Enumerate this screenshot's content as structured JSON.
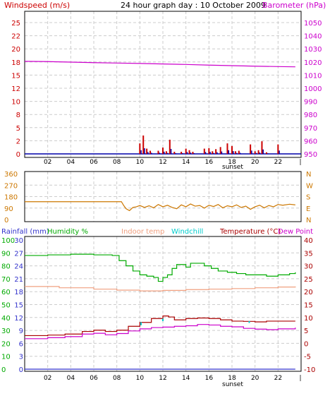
{
  "title": "24 hour graph day : 10 October 2009",
  "colors": {
    "wind": "#cc0000",
    "baro": "#cc00cc",
    "dir": "#cc7700",
    "rain": "#3333cc",
    "humidity": "#00aa00",
    "indoor": "#f0a080",
    "windchill": "#00cccc",
    "temp": "#aa0000",
    "dew": "#cc00cc",
    "grid": "#cccccc",
    "frame": "#000000"
  },
  "chart_data": [
    {
      "type": "bar",
      "left_label": "Windspeed (m/s)",
      "right_label": "Barometer (hPa)",
      "left_ticks": [
        "25",
        "22",
        "20",
        "18",
        "15",
        "12",
        "10",
        "8",
        "5",
        "2",
        "0"
      ],
      "right_ticks": [
        "1050",
        "1040",
        "1030",
        "1020",
        "1010",
        "1000",
        "990",
        "980",
        "970",
        "960",
        "950"
      ],
      "x_ticks": [
        "02",
        "04",
        "06",
        "08",
        "10",
        "12",
        "14",
        "16",
        "18",
        "20",
        "22"
      ],
      "sunset_label": "sunset",
      "ylim_left": [
        0,
        25
      ],
      "ylim_right": [
        948,
        1052
      ],
      "series": [
        {
          "name": "Windspeed",
          "axis": "left",
          "points": [
            [
              10.0,
              2.0
            ],
            [
              10.3,
              3.5
            ],
            [
              10.6,
              1.0
            ],
            [
              10.9,
              0.6
            ],
            [
              11.6,
              0.6
            ],
            [
              12.0,
              1.2
            ],
            [
              12.3,
              0.5
            ],
            [
              12.6,
              2.7
            ],
            [
              13.0,
              0.4
            ],
            [
              13.6,
              0.4
            ],
            [
              14.0,
              1.0
            ],
            [
              14.3,
              0.7
            ],
            [
              14.6,
              0.4
            ],
            [
              15.6,
              1.0
            ],
            [
              16.0,
              1.1
            ],
            [
              16.3,
              0.5
            ],
            [
              16.6,
              0.9
            ],
            [
              17.0,
              1.3
            ],
            [
              17.6,
              2.0
            ],
            [
              18.0,
              1.5
            ],
            [
              18.3,
              0.5
            ],
            [
              18.6,
              0.6
            ],
            [
              19.6,
              1.8
            ],
            [
              20.0,
              0.5
            ],
            [
              20.3,
              0.7
            ],
            [
              20.6,
              2.4
            ],
            [
              21.0,
              0.3
            ],
            [
              22.0,
              1.8
            ]
          ]
        },
        {
          "name": "Barometer",
          "axis": "right",
          "points": [
            [
              0,
              1020.5
            ],
            [
              2,
              1020.3
            ],
            [
              4,
              1019.9
            ],
            [
              6,
              1019.5
            ],
            [
              8,
              1019.2
            ],
            [
              10,
              1018.9
            ],
            [
              12,
              1018.5
            ],
            [
              14,
              1018.1
            ],
            [
              16,
              1017.6
            ],
            [
              18,
              1017.2
            ],
            [
              20,
              1016.8
            ],
            [
              22,
              1016.5
            ],
            [
              23.5,
              1016.3
            ]
          ]
        }
      ]
    },
    {
      "type": "line",
      "left_ticks": [
        "360",
        "270",
        "180",
        "90",
        "0"
      ],
      "right_ticks": [
        "N",
        "W",
        "S",
        "E",
        "N"
      ],
      "ylim": [
        0,
        360
      ],
      "series": [
        {
          "name": "Wind direction",
          "points": [
            [
              0,
              140
            ],
            [
              8.4,
              140
            ],
            [
              8.6,
              110
            ],
            [
              8.8,
              85
            ],
            [
              9.1,
              70
            ],
            [
              9.4,
              95
            ],
            [
              9.7,
              100
            ],
            [
              10,
              110
            ],
            [
              10.4,
              95
            ],
            [
              10.8,
              108
            ],
            [
              11.2,
              92
            ],
            [
              11.6,
              118
            ],
            [
              12,
              100
            ],
            [
              12.4,
              112
            ],
            [
              12.8,
              95
            ],
            [
              13.2,
              85
            ],
            [
              13.6,
              115
            ],
            [
              14,
              100
            ],
            [
              14.4,
              122
            ],
            [
              14.8,
              105
            ],
            [
              15.2,
              110
            ],
            [
              15.6,
              90
            ],
            [
              16,
              112
            ],
            [
              16.4,
              102
            ],
            [
              16.8,
              118
            ],
            [
              17.2,
              92
            ],
            [
              17.6,
              108
            ],
            [
              18,
              100
            ],
            [
              18.4,
              115
            ],
            [
              18.8,
              95
            ],
            [
              19.2,
              105
            ],
            [
              19.6,
              80
            ],
            [
              20,
              100
            ],
            [
              20.4,
              112
            ],
            [
              20.8,
              92
            ],
            [
              21.2,
              110
            ],
            [
              21.6,
              100
            ],
            [
              22,
              118
            ],
            [
              22.4,
              112
            ],
            [
              23,
              120
            ],
            [
              23.5,
              115
            ]
          ]
        }
      ]
    },
    {
      "type": "line",
      "header_labels": {
        "rainfall": "Rainfall (mm)",
        "humidity": "Humidity %",
        "indoor": "Indoor temp",
        "windchill": "Windchill",
        "temperature": "Temperature (°C)",
        "dewpoint": "Dew Point"
      },
      "humidity_ticks": [
        "100",
        "90",
        "80",
        "70",
        "60",
        "50",
        "40",
        "30",
        "20",
        "10",
        "0"
      ],
      "rain_ticks": [
        "30",
        "27",
        "24",
        "21",
        "18",
        "15",
        "12",
        "9",
        "6",
        "3",
        "0"
      ],
      "temp_ticks": [
        "40",
        "35",
        "30",
        "25",
        "20",
        "15",
        "10",
        "5",
        "0",
        "-5",
        "-10"
      ],
      "x_ticks": [
        "02",
        "04",
        "06",
        "08",
        "10",
        "12",
        "14",
        "16",
        "18",
        "20",
        "22"
      ],
      "sunset_label": "sunset",
      "ylim_temp": [
        -10,
        40
      ],
      "series": [
        {
          "name": "Humidity",
          "unit": "%",
          "axis": "humidity",
          "points": [
            [
              0,
              88
            ],
            [
              2,
              88.5
            ],
            [
              4,
              89
            ],
            [
              6,
              88.5
            ],
            [
              7.6,
              88
            ],
            [
              8.2,
              84
            ],
            [
              8.8,
              80
            ],
            [
              9.4,
              76
            ],
            [
              10,
              73
            ],
            [
              10.6,
              72
            ],
            [
              11.2,
              71
            ],
            [
              11.6,
              68
            ],
            [
              12,
              71
            ],
            [
              12.4,
              73
            ],
            [
              12.8,
              78
            ],
            [
              13.2,
              81
            ],
            [
              13.6,
              81
            ],
            [
              14,
              79
            ],
            [
              14.4,
              82
            ],
            [
              15,
              82
            ],
            [
              15.6,
              80
            ],
            [
              16.2,
              78
            ],
            [
              16.8,
              76
            ],
            [
              17.6,
              75
            ],
            [
              18.4,
              74
            ],
            [
              19.2,
              73
            ],
            [
              20,
              73
            ],
            [
              21,
              72
            ],
            [
              22,
              73
            ],
            [
              23,
              74
            ],
            [
              23.5,
              75
            ]
          ]
        },
        {
          "name": "Indoor temp",
          "unit": "°C",
          "axis": "temp",
          "points": [
            [
              0,
              22
            ],
            [
              3,
              21.5
            ],
            [
              6,
              21
            ],
            [
              8,
              20.6
            ],
            [
              10,
              20.3
            ],
            [
              12,
              20.5
            ],
            [
              14,
              20.8
            ],
            [
              16,
              21
            ],
            [
              18,
              21.2
            ],
            [
              20,
              21.5
            ],
            [
              22,
              21.8
            ],
            [
              23.5,
              22
            ]
          ]
        },
        {
          "name": "Temperature",
          "unit": "°C",
          "axis": "temp",
          "points": [
            [
              0,
              3
            ],
            [
              2,
              3.2
            ],
            [
              3.5,
              3.6
            ],
            [
              5,
              4.6
            ],
            [
              6,
              5.1
            ],
            [
              7,
              4.6
            ],
            [
              8,
              5.1
            ],
            [
              9,
              6.6
            ],
            [
              10,
              8.1
            ],
            [
              11,
              9.6
            ],
            [
              12,
              10.6
            ],
            [
              12.5,
              10.2
            ],
            [
              13,
              9.1
            ],
            [
              14,
              9.6
            ],
            [
              15,
              9.8
            ],
            [
              16,
              9.6
            ],
            [
              17,
              9.1
            ],
            [
              18,
              8.6
            ],
            [
              19,
              8.5
            ],
            [
              20,
              8.3
            ],
            [
              21,
              8.6
            ],
            [
              22,
              8.6
            ],
            [
              23.5,
              8.6
            ]
          ]
        },
        {
          "name": "Dew Point",
          "unit": "°C",
          "axis": "temp",
          "points": [
            [
              0,
              1.8
            ],
            [
              2,
              2.2
            ],
            [
              3.5,
              2.6
            ],
            [
              5,
              3.6
            ],
            [
              6,
              3.9
            ],
            [
              7,
              3.3
            ],
            [
              8,
              3.8
            ],
            [
              9,
              4.8
            ],
            [
              10,
              5.6
            ],
            [
              11,
              6.1
            ],
            [
              12,
              6.3
            ],
            [
              13,
              6.6
            ],
            [
              14,
              6.8
            ],
            [
              15,
              7.3
            ],
            [
              16,
              7.1
            ],
            [
              17,
              6.6
            ],
            [
              18,
              6.4
            ],
            [
              19,
              5.8
            ],
            [
              20,
              5.5
            ],
            [
              21,
              5.3
            ],
            [
              22,
              5.6
            ],
            [
              23.5,
              6.1
            ]
          ]
        },
        {
          "name": "Windchill",
          "unit": "°C",
          "axis": "temp",
          "points": [
            [
              10.1,
              7.0
            ],
            [
              10.1,
              8.2
            ],
            [
              12.0,
              8.6
            ],
            [
              12.0,
              9.6
            ],
            [
              19.5,
              7.9
            ],
            [
              19.5,
              8.6
            ]
          ]
        },
        {
          "name": "Rainfall",
          "unit": "mm",
          "axis": "rain",
          "points": [
            [
              0,
              0
            ],
            [
              23.5,
              0
            ]
          ]
        }
      ]
    }
  ]
}
